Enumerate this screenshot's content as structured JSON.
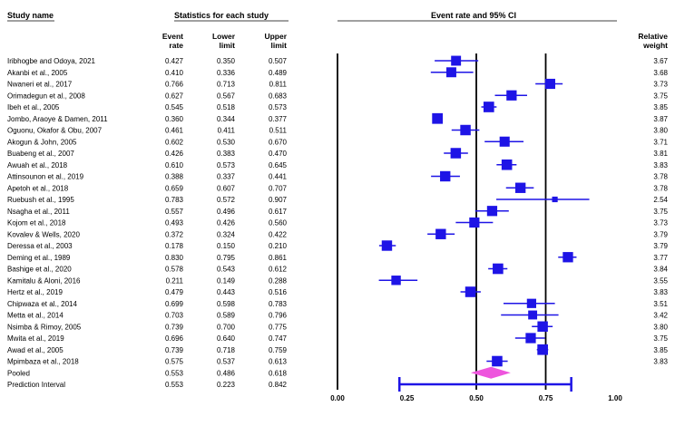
{
  "headers": {
    "study_name": "Study name",
    "statistics": "Statistics for each study",
    "event_rate_ci": "Event rate and 95% CI",
    "event_rate": [
      "Event",
      "rate"
    ],
    "lower_limit": [
      "Lower",
      "limit"
    ],
    "upper_limit": [
      "Upper",
      "limit"
    ],
    "relative_weight": [
      "Relative",
      "weight"
    ]
  },
  "colors": {
    "marker": "#1e14e6",
    "pooled": "#ee55dd",
    "text": "#000000"
  },
  "chart_data": {
    "type": "forest",
    "x_ticks": [
      "0.00",
      "0.25",
      "0.50",
      "0.75",
      "1.00"
    ],
    "xlim": [
      0,
      1
    ],
    "reference_lines": [
      0,
      0.5,
      0.75
    ],
    "rows": [
      {
        "study": "Iribhogbe and Odoya, 2021",
        "rate": "0.427",
        "lower": "0.350",
        "upper": "0.507",
        "weight": "3.67"
      },
      {
        "study": "Akanbi et al., 2005",
        "rate": "0.410",
        "lower": "0.336",
        "upper": "0.489",
        "weight": "3.68"
      },
      {
        "study": "Nwaneri et al., 2017",
        "rate": "0.766",
        "lower": "0.713",
        "upper": "0.811",
        "weight": "3.73"
      },
      {
        "study": "Orimadegun et al., 2008",
        "rate": "0.627",
        "lower": "0.567",
        "upper": "0.683",
        "weight": "3.75"
      },
      {
        "study": "Ibeh et al., 2005",
        "rate": "0.545",
        "lower": "0.518",
        "upper": "0.573",
        "weight": "3.85"
      },
      {
        "study": "Jombo, Araoye & Damen, 2011",
        "rate": "0.360",
        "lower": "0.344",
        "upper": "0.377",
        "weight": "3.87"
      },
      {
        "study": "Oguonu, Okafor & Obu, 2007",
        "rate": "0.461",
        "lower": "0.411",
        "upper": "0.511",
        "weight": "3.80"
      },
      {
        "study": "Akogun & John, 2005",
        "rate": "0.602",
        "lower": "0.530",
        "upper": "0.670",
        "weight": "3.71"
      },
      {
        "study": "Buabeng et al., 2007",
        "rate": "0.426",
        "lower": "0.383",
        "upper": "0.470",
        "weight": "3.81"
      },
      {
        "study": "Awuah et al., 2018",
        "rate": "0.610",
        "lower": "0.573",
        "upper": "0.645",
        "weight": "3.83"
      },
      {
        "study": "Attinsounon et al., 2019",
        "rate": "0.388",
        "lower": "0.337",
        "upper": "0.441",
        "weight": "3.78"
      },
      {
        "study": "Apetoh et al., 2018",
        "rate": "0.659",
        "lower": "0.607",
        "upper": "0.707",
        "weight": "3.78"
      },
      {
        "study": "Ruebush et al., 1995",
        "rate": "0.783",
        "lower": "0.572",
        "upper": "0.907",
        "weight": "2.54"
      },
      {
        "study": "Nsagha et al., 2011",
        "rate": "0.557",
        "lower": "0.496",
        "upper": "0.617",
        "weight": "3.75"
      },
      {
        "study": "Kojom et al., 2018",
        "rate": "0.493",
        "lower": "0.426",
        "upper": "0.560",
        "weight": "3.73"
      },
      {
        "study": "Kovalev & Wells, 2020",
        "rate": "0.372",
        "lower": "0.324",
        "upper": "0.422",
        "weight": "3.79"
      },
      {
        "study": "Deressa et al., 2003",
        "rate": "0.178",
        "lower": "0.150",
        "upper": "0.210",
        "weight": "3.79"
      },
      {
        "study": "Deming et al., 1989",
        "rate": "0.830",
        "lower": "0.795",
        "upper": "0.861",
        "weight": "3.77"
      },
      {
        "study": "Bashige et al., 2020",
        "rate": "0.578",
        "lower": "0.543",
        "upper": "0.612",
        "weight": "3.84"
      },
      {
        "study": "Kamitalu & Aloni, 2016",
        "rate": "0.211",
        "lower": "0.149",
        "upper": "0.288",
        "weight": "3.55"
      },
      {
        "study": "Hertz et al., 2019",
        "rate": "0.479",
        "lower": "0.443",
        "upper": "0.516",
        "weight": "3.83"
      },
      {
        "study": "Chipwaza et al., 2014",
        "rate": "0.699",
        "lower": "0.598",
        "upper": "0.783",
        "weight": "3.51"
      },
      {
        "study": "Metta et al., 2014",
        "rate": "0.703",
        "lower": "0.589",
        "upper": "0.796",
        "weight": "3.42"
      },
      {
        "study": "Nsimba & Rimoy, 2005",
        "rate": "0.739",
        "lower": "0.700",
        "upper": "0.775",
        "weight": "3.80"
      },
      {
        "study": "Mwita et al., 2019",
        "rate": "0.696",
        "lower": "0.640",
        "upper": "0.747",
        "weight": "3.75"
      },
      {
        "study": "Awad et al., 2005",
        "rate": "0.739",
        "lower": "0.718",
        "upper": "0.759",
        "weight": "3.85"
      },
      {
        "study": "Mpimbaza et al., 2018",
        "rate": "0.575",
        "lower": "0.537",
        "upper": "0.613",
        "weight": "3.83"
      }
    ],
    "pooled": {
      "label": "Pooled",
      "rate": "0.553",
      "lower": "0.486",
      "upper": "0.618"
    },
    "prediction_interval": {
      "label": "Prediction Interval",
      "rate": "0.553",
      "lower": "0.223",
      "upper": "0.842"
    }
  }
}
